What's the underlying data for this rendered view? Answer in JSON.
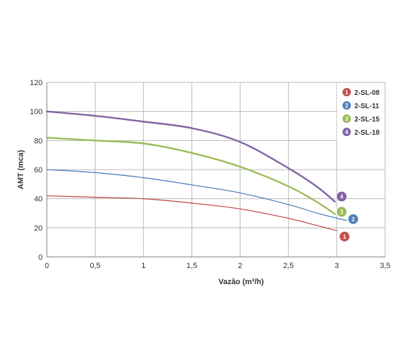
{
  "chart_data": {
    "type": "line",
    "title": "",
    "xlabel": "Vazão (m³/h)",
    "ylabel": "AMT (mca)",
    "xlim": [
      0,
      3.5
    ],
    "ylim": [
      0,
      120
    ],
    "x_ticks": [
      0,
      0.5,
      1,
      1.5,
      2,
      2.5,
      3,
      3.5
    ],
    "x_tick_labels": [
      "0",
      "0,5",
      "1",
      "1,5",
      "2",
      "2,5",
      "3",
      "3,5"
    ],
    "y_ticks": [
      0,
      20,
      40,
      60,
      80,
      100,
      120
    ],
    "y_tick_labels": [
      "0",
      "20",
      "40",
      "60",
      "80",
      "100",
      "120"
    ],
    "grid": true,
    "legend_position": "top-right",
    "series": [
      {
        "name": "2-SL-08",
        "badge": "1",
        "color": "#c0504d",
        "x": [
          0,
          0.5,
          1,
          1.5,
          2,
          2.5,
          2.8,
          3.0
        ],
        "y": [
          42,
          41,
          40,
          37,
          33,
          26.5,
          21.5,
          18
        ]
      },
      {
        "name": "2-SL-11",
        "badge": "2",
        "color": "#4f81bd",
        "x": [
          0,
          0.5,
          1,
          1.5,
          2,
          2.5,
          2.8,
          3.1
        ],
        "y": [
          60,
          58,
          54.5,
          49.5,
          44,
          36,
          30,
          25
        ]
      },
      {
        "name": "2-SL-15",
        "badge": "3",
        "color": "#9bbb59",
        "x": [
          0,
          0.5,
          1,
          1.5,
          2,
          2.5,
          2.8,
          2.98
        ],
        "y": [
          82,
          80,
          78,
          71.5,
          62,
          48.5,
          37.5,
          29.5
        ]
      },
      {
        "name": "2-SL-18",
        "badge": "4",
        "color": "#8064a2",
        "x": [
          0,
          0.5,
          1,
          1.5,
          2,
          2.5,
          2.8,
          2.98
        ],
        "y": [
          100,
          97,
          93,
          88.5,
          79,
          61,
          48,
          38
        ]
      }
    ],
    "end_badges": [
      {
        "badge": "1",
        "x": 3.08,
        "y": 14
      },
      {
        "badge": "2",
        "x": 3.17,
        "y": 26
      },
      {
        "badge": "3",
        "x": 3.05,
        "y": 31
      },
      {
        "badge": "4",
        "x": 3.05,
        "y": 41.5
      }
    ]
  }
}
